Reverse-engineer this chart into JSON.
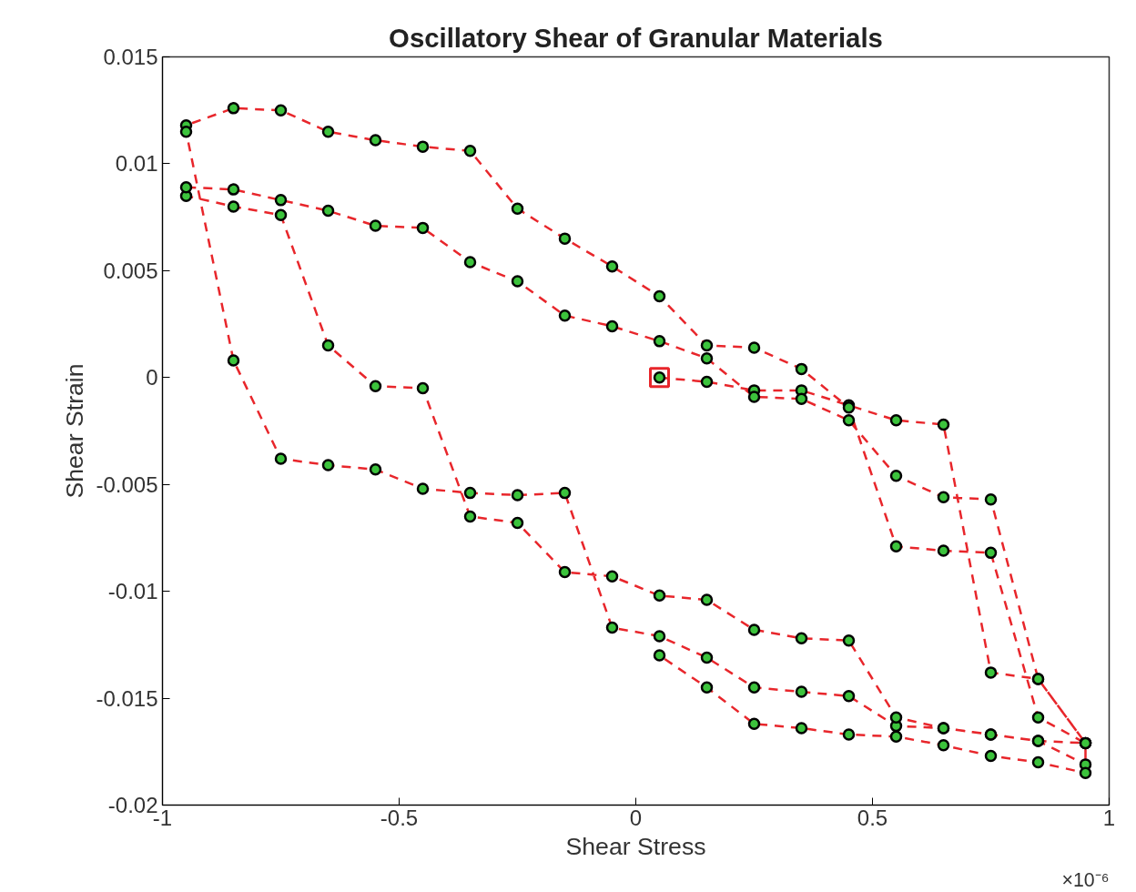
{
  "chart_data": {
    "type": "line",
    "title": "Oscillatory Shear of Granular Materials",
    "xlabel": "Shear Stress",
    "ylabel": "Shear Strain",
    "annotations": [
      "×10⁻⁶"
    ],
    "xlim": [
      -1,
      1
    ],
    "xticks": [
      -1,
      -0.5,
      0,
      0.5,
      1
    ],
    "ylim": [
      -0.02,
      0.015
    ],
    "yticks": [
      -0.02,
      -0.015,
      -0.01,
      -0.005,
      0,
      0.005,
      0.01,
      0.015
    ],
    "grid": false,
    "series": [
      {
        "color": "#e8262b",
        "marker": "circle",
        "line_style": "dashed",
        "x": [
          0.05,
          0.15,
          0.25,
          0.35,
          0.45,
          0.55,
          0.65,
          0.75,
          0.85,
          0.95,
          0.85,
          0.75,
          0.65,
          0.55,
          0.45,
          0.35,
          0.25,
          0.15,
          0.05,
          -0.05,
          -0.15,
          -0.25,
          -0.35,
          -0.45,
          -0.55,
          -0.65,
          -0.75,
          -0.85,
          -0.95,
          -0.95,
          -0.85,
          -0.75,
          -0.65,
          -0.55,
          -0.45,
          -0.35,
          -0.25,
          -0.15,
          -0.05,
          0.05,
          0.15,
          0.25,
          0.35,
          0.45,
          0.55,
          0.65,
          0.75,
          0.85,
          0.95,
          0.95,
          0.85,
          0.75,
          0.65,
          0.55,
          0.45,
          0.35,
          0.25,
          0.15,
          0.05,
          -0.05,
          -0.15,
          -0.25,
          -0.35,
          -0.45,
          -0.55,
          -0.65,
          -0.75,
          -0.85,
          -0.95,
          -0.95,
          -0.85,
          -0.75,
          -0.65,
          -0.55,
          -0.45,
          -0.35,
          -0.25,
          -0.15,
          -0.05,
          0.05,
          0.15,
          0.25,
          0.35,
          0.45,
          0.55,
          0.65,
          0.75,
          0.85,
          0.95,
          0.95,
          0.85,
          0.75,
          0.65,
          0.55,
          0.45,
          0.35,
          0.25,
          0.15,
          0.05
        ],
        "values": [
          0,
          -0.0002,
          -0.0006,
          -0.0006,
          -0.0013,
          -0.002,
          -0.0022,
          -0.0138,
          -0.0141,
          -0.0171,
          -0.0159,
          -0.0082,
          -0.0081,
          -0.0079,
          -0.0014,
          0.0004,
          0.0014,
          0.0015,
          0.0038,
          0.0052,
          0.0065,
          0.0079,
          0.0106,
          0.0108,
          0.0111,
          0.0115,
          0.0125,
          0.0126,
          0.0118,
          0.0115,
          0.0008,
          -0.0038,
          -0.0041,
          -0.0043,
          -0.0052,
          -0.0054,
          -0.0055,
          -0.0054,
          -0.0117,
          -0.0121,
          -0.0131,
          -0.0145,
          -0.0147,
          -0.0149,
          -0.0163,
          -0.0164,
          -0.0167,
          -0.017,
          -0.0171,
          -0.0181,
          -0.017,
          -0.0167,
          -0.0164,
          -0.0159,
          -0.0123,
          -0.0122,
          -0.0118,
          -0.0104,
          -0.0102,
          -0.0093,
          -0.0091,
          -0.0068,
          -0.0065,
          -0.0005,
          -0.0004,
          0.0015,
          0.0076,
          0.008,
          0.0085,
          0.0089,
          0.0088,
          0.0083,
          0.0078,
          0.0071,
          0.007,
          0.0054,
          0.0045,
          0.0029,
          0.0024,
          0.0017,
          0.0009,
          -0.0009,
          -0.001,
          -0.002,
          -0.0046,
          -0.0056,
          -0.0057,
          -0.0141,
          -0.0171,
          -0.0185,
          -0.018,
          -0.0177,
          -0.0172,
          -0.0168,
          -0.0167,
          -0.0164,
          -0.0162,
          -0.0145,
          -0.013
        ]
      },
      {
        "type": "scatter",
        "color": "#e8262b",
        "marker": "square",
        "x": [
          0.05
        ],
        "values": [
          0
        ]
      }
    ]
  }
}
